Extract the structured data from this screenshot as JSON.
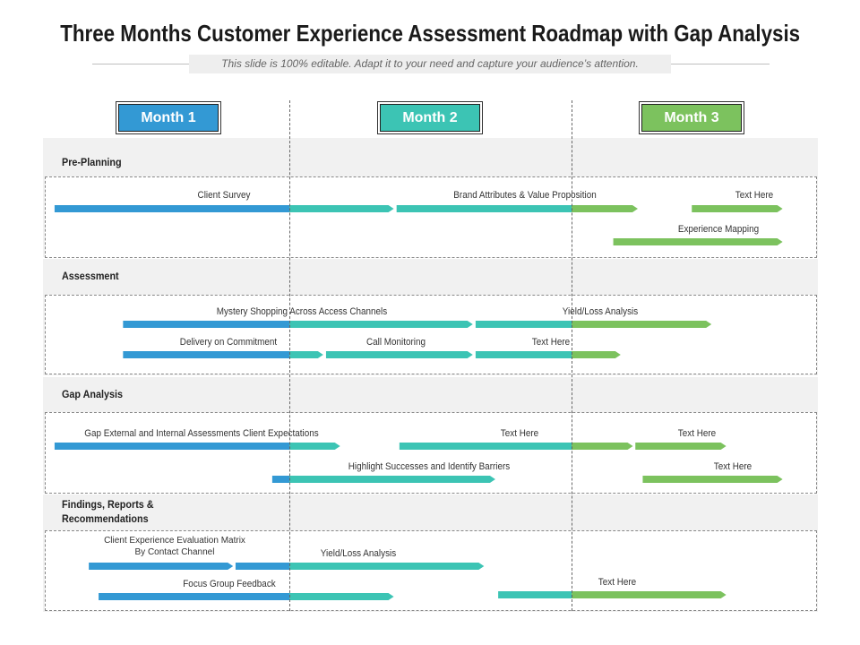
{
  "title": "Three Months Customer Experience Assessment Roadmap with Gap Analysis",
  "subtitle": "This slide is 100% editable. Adapt it to your need and capture your audience’s attention.",
  "colors": {
    "month1": "#3399d4",
    "month2": "#3cc4b4",
    "month3": "#7cc25e"
  },
  "months": [
    "Month 1",
    "Month 2",
    "Month 3"
  ],
  "sections": [
    {
      "label": "Pre-Planning",
      "bars": [
        {
          "label": "Client Survey",
          "start": 0.04,
          "end": 1.37
        },
        {
          "label": "Brand Attributes & Value Proposition",
          "start": 1.38,
          "end": 2.27
        },
        {
          "label": "Text Here",
          "start": 2.49,
          "end": 2.86
        },
        {
          "label": "Experience Mapping",
          "start": 2.17,
          "end": 2.86
        }
      ]
    },
    {
      "label": "Assessment",
      "bars": [
        {
          "label": "Mystery Shopping Across Access Channels",
          "start": 0.32,
          "end": 1.65
        },
        {
          "label": "Yield/Loss Analysis",
          "start": 1.66,
          "end": 2.57
        },
        {
          "label": "Delivery on Commitment",
          "start": 0.32,
          "end": 1.12
        },
        {
          "label": "Call Monitoring",
          "start": 1.13,
          "end": 1.65
        },
        {
          "label": "Text Here",
          "start": 1.66,
          "end": 2.2
        }
      ]
    },
    {
      "label": "Gap Analysis",
      "bars": [
        {
          "label": "Gap External and Internal Assessments Client Expectations",
          "start": 0.04,
          "end": 1.18
        },
        {
          "label": "Text Here",
          "start": 1.39,
          "end": 2.25
        },
        {
          "label": "Text Here",
          "start": 2.26,
          "end": 2.63
        },
        {
          "label": "Highlight Successes and Identify Barriers",
          "start": 0.93,
          "end": 1.73
        },
        {
          "label": "Text Here",
          "start": 2.29,
          "end": 2.86
        }
      ]
    },
    {
      "label": "Findings, Reports & Recommendations",
      "bars": [
        {
          "label": "Client Experience Evaluation Matrix By Contact Channel",
          "start": 0.18,
          "end": 0.77
        },
        {
          "label": "Yield/Loss Analysis",
          "start": 0.78,
          "end": 1.69
        },
        {
          "label": "Focus Group Feedback",
          "start": 0.22,
          "end": 1.37
        },
        {
          "label": "Text Here",
          "start": 1.74,
          "end": 2.63
        }
      ]
    }
  ]
}
